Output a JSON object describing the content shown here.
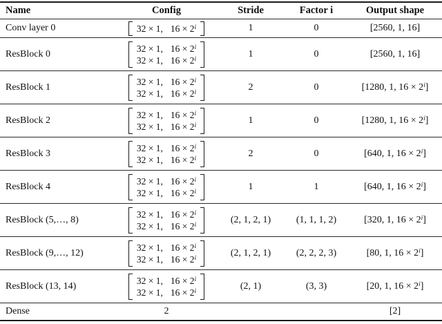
{
  "table": {
    "columns": [
      "Name",
      "Config",
      "Stride",
      "Factor i",
      "Output shape"
    ],
    "config_entry": {
      "kernel": "32 × 1,",
      "filters_base": "16 × 2",
      "filters_sup": "i"
    },
    "rows": [
      {
        "name": "Conv layer 0",
        "stride": "1",
        "factor": "0",
        "out_pre": "[2560, 1, 16]",
        "out_sup": "",
        "out_post": ""
      },
      {
        "name": "ResBlock 0",
        "stride": "1",
        "factor": "0",
        "out_pre": "[2560, 1, 16]",
        "out_sup": "",
        "out_post": ""
      },
      {
        "name": "ResBlock 1",
        "stride": "2",
        "factor": "0",
        "out_pre": "[1280, 1, 16 × 2",
        "out_sup": "i",
        "out_post": "]"
      },
      {
        "name": "ResBlock 2",
        "stride": "1",
        "factor": "0",
        "out_pre": "[1280, 1, 16 × 2",
        "out_sup": "i",
        "out_post": "]"
      },
      {
        "name": "ResBlock 3",
        "stride": "2",
        "factor": "0",
        "out_pre": "[640, 1, 16 × 2",
        "out_sup": "i",
        "out_post": "]"
      },
      {
        "name": "ResBlock 4",
        "stride": "1",
        "factor": "1",
        "out_pre": "[640, 1, 16 × 2",
        "out_sup": "i",
        "out_post": "]"
      },
      {
        "name": "ResBlock (5,…, 8)",
        "stride": "(2, 1, 2, 1)",
        "factor": "(1, 1, 1, 2)",
        "out_pre": "[320, 1, 16 × 2",
        "out_sup": "i",
        "out_post": "]"
      },
      {
        "name": "ResBlock (9,…, 12)",
        "stride": "(2, 1, 2, 1)",
        "factor": "(2, 2, 2, 3)",
        "out_pre": "[80, 1, 16 × 2",
        "out_sup": "i",
        "out_post": "]"
      },
      {
        "name": "ResBlock (13, 14)",
        "stride": "(2, 1)",
        "factor": "(3, 3)",
        "out_pre": "[20, 1, 16 × 2",
        "out_sup": "i",
        "out_post": "]"
      },
      {
        "name": "Dense",
        "config_plain": "2",
        "stride": "",
        "factor": "",
        "out_pre": "[2]",
        "out_sup": "",
        "out_post": ""
      }
    ]
  }
}
